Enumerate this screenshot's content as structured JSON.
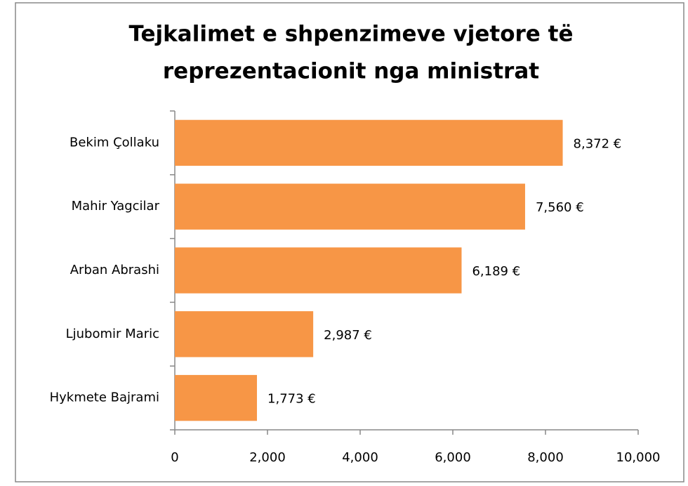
{
  "chart_data": {
    "type": "bar",
    "orientation": "horizontal",
    "title": [
      "Tejkalimet e shpenzimeve vjetore të",
      "reprezentacionit  nga ministrat"
    ],
    "categories": [
      "Bekim Çollaku",
      "Mahir Yagcilar",
      "Arban Abrashi",
      "Ljubomir Maric",
      "Hykmete Bajrami"
    ],
    "values": [
      8372,
      7560,
      6189,
      2987,
      1773
    ],
    "value_labels": [
      "8,372 €",
      "7,560 €",
      "6,189 €",
      "2,987 €",
      "1,773 €"
    ],
    "color": "#f79646",
    "xlim": [
      0,
      10000
    ],
    "xticks": [
      0,
      {
        "value": 2000,
        "label": "2,000"
      },
      {
        "value": 4000,
        "label": "4,000"
      },
      {
        "value": 6000,
        "label": "6,000"
      },
      {
        "value": 8000,
        "label": "8,000"
      },
      {
        "value": 10000,
        "label": "10,000"
      }
    ],
    "grid": false
  }
}
